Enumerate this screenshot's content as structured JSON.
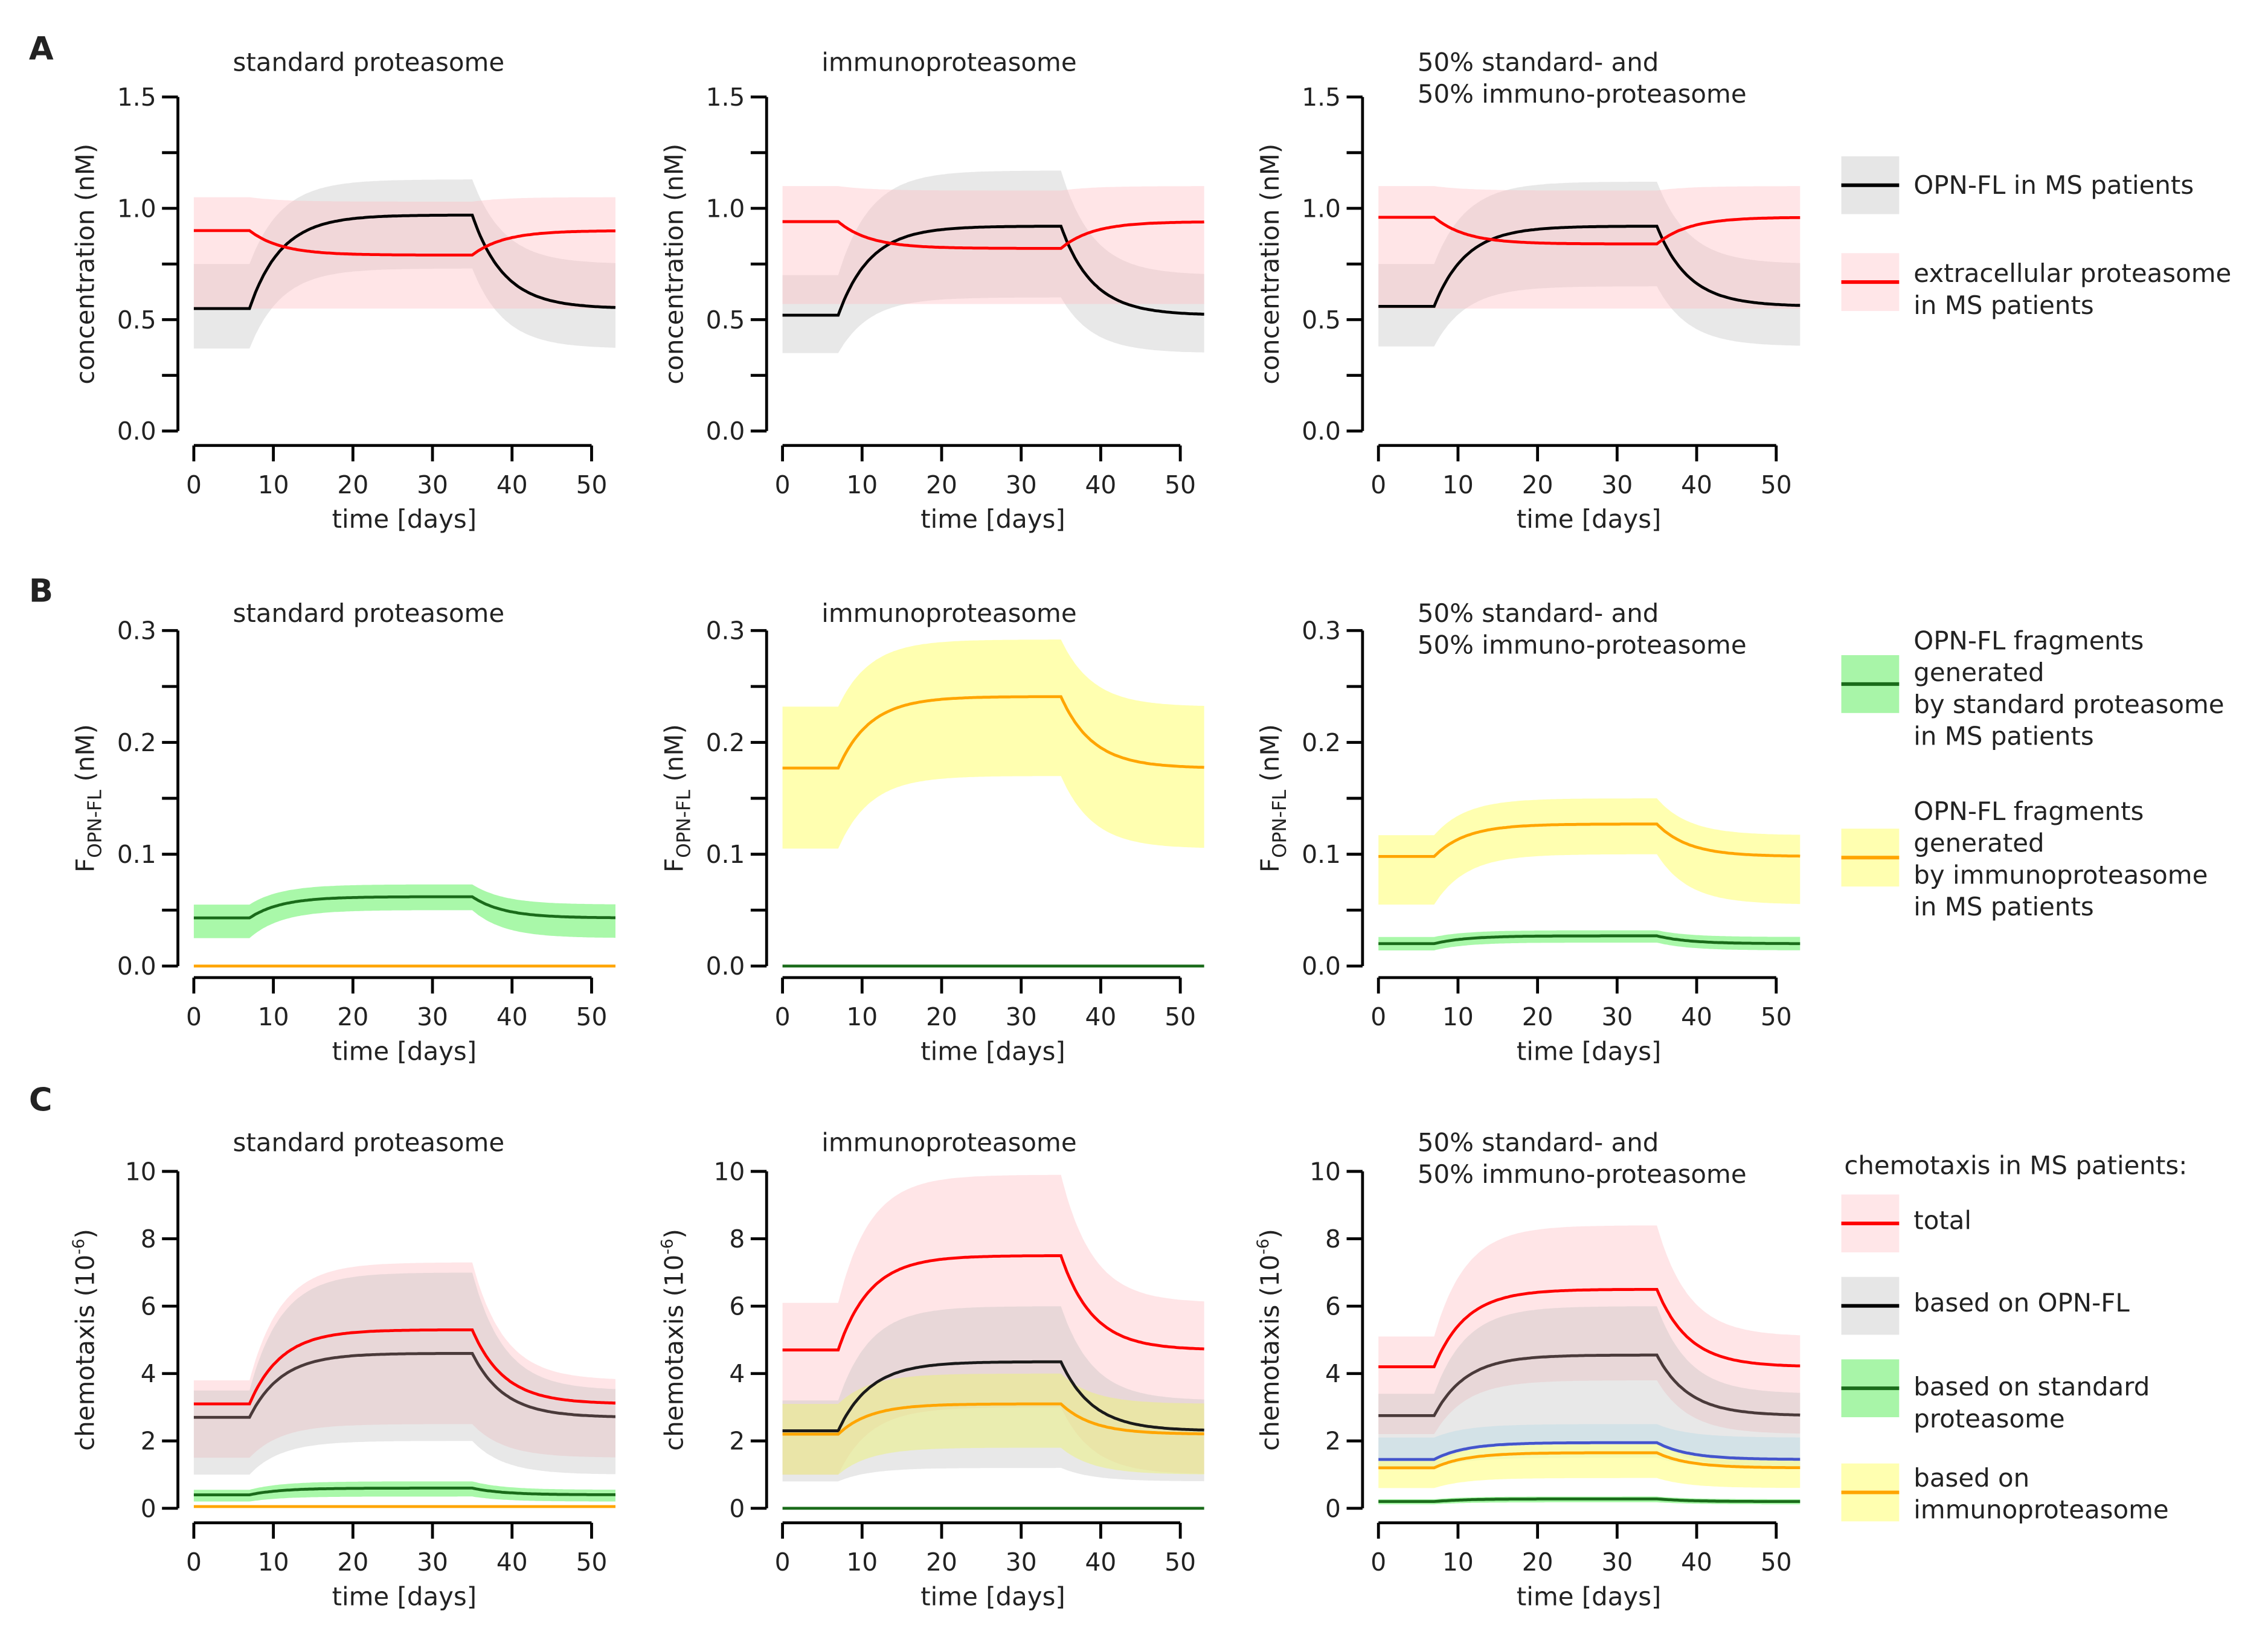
{
  "panel_labels": [
    "A",
    "B",
    "C"
  ],
  "treatment_window_days": [
    7,
    35
  ],
  "chart_data": [
    {
      "type": "line",
      "row": 0,
      "title": [
        "standard proteasome"
      ],
      "xlabel": "time [days]",
      "ylabel": {
        "text": "concentration (nM)"
      },
      "xlim": [
        0,
        53
      ],
      "ylim": [
        0,
        1.5
      ],
      "xticks": [
        0,
        10,
        20,
        30,
        40,
        50
      ],
      "yticks": [
        0,
        0.5,
        1.0,
        1.5
      ],
      "yminor": 0.25,
      "ydec": 1,
      "series": [
        {
          "color": "#000000",
          "baseline": 0.55,
          "plateau": 0.97,
          "band": {
            "color": "rgba(190,190,190,0.35)",
            "baseline": [
              0.37,
              0.75
            ],
            "plateau": [
              0.73,
              1.13
            ]
          }
        },
        {
          "color": "#ff0000",
          "baseline": 0.9,
          "plateau": 0.79,
          "band": {
            "color": "rgba(255,190,195,0.4)",
            "baseline": [
              0.55,
              1.05
            ],
            "plateau": [
              0.55,
              1.03
            ]
          }
        }
      ]
    },
    {
      "type": "line",
      "row": 0,
      "title": [
        "immunoproteasome"
      ],
      "xlabel": "time [days]",
      "ylabel": {
        "text": "concentration (nM)"
      },
      "xlim": [
        0,
        53
      ],
      "ylim": [
        0,
        1.5
      ],
      "xticks": [
        0,
        10,
        20,
        30,
        40,
        50
      ],
      "yticks": [
        0,
        0.5,
        1.0,
        1.5
      ],
      "yminor": 0.25,
      "ydec": 1,
      "series": [
        {
          "color": "#000000",
          "baseline": 0.52,
          "plateau": 0.92,
          "band": {
            "color": "rgba(190,190,190,0.35)",
            "baseline": [
              0.35,
              0.7
            ],
            "plateau": [
              0.6,
              1.17
            ]
          }
        },
        {
          "color": "#ff0000",
          "baseline": 0.94,
          "plateau": 0.82,
          "band": {
            "color": "rgba(255,190,195,0.4)",
            "baseline": [
              0.57,
              1.1
            ],
            "plateau": [
              0.57,
              1.08
            ]
          }
        }
      ]
    },
    {
      "type": "line",
      "row": 0,
      "title": [
        "50% standard- and",
        "50% immuno-proteasome"
      ],
      "xlabel": "time [days]",
      "ylabel": {
        "text": "concentration (nM)"
      },
      "xlim": [
        0,
        53
      ],
      "ylim": [
        0,
        1.5
      ],
      "xticks": [
        0,
        10,
        20,
        30,
        40,
        50
      ],
      "yticks": [
        0,
        0.5,
        1.0,
        1.5
      ],
      "yminor": 0.25,
      "ydec": 1,
      "series": [
        {
          "color": "#000000",
          "baseline": 0.56,
          "plateau": 0.92,
          "band": {
            "color": "rgba(190,190,190,0.35)",
            "baseline": [
              0.38,
              0.75
            ],
            "plateau": [
              0.65,
              1.12
            ]
          }
        },
        {
          "color": "#ff0000",
          "baseline": 0.96,
          "plateau": 0.84,
          "band": {
            "color": "rgba(255,190,195,0.4)",
            "baseline": [
              0.55,
              1.1
            ],
            "plateau": [
              0.55,
              1.08
            ]
          }
        }
      ]
    },
    {
      "type": "line",
      "row": 1,
      "title": [
        "standard proteasome"
      ],
      "xlabel": "time [days]",
      "ylabel": {
        "text": "F",
        "sub": "OPN-FL",
        "tail": " (nM)"
      },
      "xlim": [
        0,
        53
      ],
      "ylim": [
        0,
        0.3
      ],
      "xticks": [
        0,
        10,
        20,
        30,
        40,
        50
      ],
      "yticks": [
        0,
        0.1,
        0.2,
        0.3
      ],
      "yminor": 0.05,
      "ydec": 1,
      "series": [
        {
          "color": "#1a6b1a",
          "baseline": 0.043,
          "plateau": 0.062,
          "band": {
            "color": "rgba(140,245,140,0.75)",
            "baseline": [
              0.025,
              0.055
            ],
            "plateau": [
              0.05,
              0.073
            ]
          }
        },
        {
          "color": "#ffa500",
          "baseline": 0.0,
          "plateau": 0.0
        }
      ]
    },
    {
      "type": "line",
      "row": 1,
      "title": [
        "immunoproteasome"
      ],
      "xlabel": "time [days]",
      "ylabel": {
        "text": "F",
        "sub": "OPN-FL",
        "tail": " (nM)"
      },
      "xlim": [
        0,
        53
      ],
      "ylim": [
        0,
        0.3
      ],
      "xticks": [
        0,
        10,
        20,
        30,
        40,
        50
      ],
      "yticks": [
        0,
        0.1,
        0.2,
        0.3
      ],
      "yminor": 0.05,
      "ydec": 1,
      "series": [
        {
          "color": "#ffa500",
          "baseline": 0.177,
          "plateau": 0.241,
          "band": {
            "color": "rgba(255,255,150,0.75)",
            "baseline": [
              0.105,
              0.232
            ],
            "plateau": [
              0.17,
              0.292
            ]
          }
        },
        {
          "color": "#1a6b1a",
          "baseline": 0.0,
          "plateau": 0.0
        }
      ]
    },
    {
      "type": "line",
      "row": 1,
      "title": [
        "50% standard- and",
        "50% immuno-proteasome"
      ],
      "xlabel": "time [days]",
      "ylabel": {
        "text": "F",
        "sub": "OPN-FL",
        "tail": " (nM)"
      },
      "xlim": [
        0,
        53
      ],
      "ylim": [
        0,
        0.3
      ],
      "xticks": [
        0,
        10,
        20,
        30,
        40,
        50
      ],
      "yticks": [
        0,
        0.1,
        0.2,
        0.3
      ],
      "yminor": 0.05,
      "ydec": 1,
      "series": [
        {
          "color": "#ffa500",
          "baseline": 0.098,
          "plateau": 0.127,
          "band": {
            "color": "rgba(255,255,150,0.75)",
            "baseline": [
              0.055,
              0.117
            ],
            "plateau": [
              0.1,
              0.15
            ]
          }
        },
        {
          "color": "#1a6b1a",
          "baseline": 0.02,
          "plateau": 0.027,
          "band": {
            "color": "rgba(140,245,140,0.75)",
            "baseline": [
              0.014,
              0.026
            ],
            "plateau": [
              0.021,
              0.032
            ]
          }
        }
      ]
    },
    {
      "type": "line",
      "row": 2,
      "title": [
        "standard proteasome"
      ],
      "xlabel": "time [days]",
      "ylabel": {
        "text": "chemotaxis (10",
        "sup": "-6",
        "tail": ")"
      },
      "xlim": [
        0,
        53
      ],
      "ylim": [
        0,
        10
      ],
      "xticks": [
        0,
        10,
        20,
        30,
        40,
        50
      ],
      "yticks": [
        0,
        2,
        4,
        6,
        8,
        10
      ],
      "yminor": 2,
      "ydec": 0,
      "series": [
        {
          "color": "#ff0000",
          "baseline": 3.1,
          "plateau": 5.3,
          "band": {
            "color": "rgba(255,190,195,0.4)",
            "baseline": [
              1.5,
              3.8
            ],
            "plateau": [
              2.5,
              7.3
            ]
          }
        },
        {
          "color": "#4a3a3a",
          "baseline": 2.7,
          "plateau": 4.6,
          "band": {
            "color": "rgba(190,190,190,0.35)",
            "baseline": [
              1.0,
              3.5
            ],
            "plateau": [
              2.0,
              7.0
            ]
          }
        },
        {
          "color": "#1a6b1a",
          "baseline": 0.4,
          "plateau": 0.6,
          "band": {
            "color": "rgba(140,245,140,0.75)",
            "baseline": [
              0.2,
              0.55
            ],
            "plateau": [
              0.35,
              0.8
            ]
          }
        },
        {
          "color": "#ffa500",
          "baseline": 0.05,
          "plateau": 0.05
        }
      ]
    },
    {
      "type": "line",
      "row": 2,
      "title": [
        "immunoproteasome"
      ],
      "xlabel": "time [days]",
      "ylabel": {
        "text": "chemotaxis (10",
        "sup": "-6",
        "tail": ")"
      },
      "xlim": [
        0,
        53
      ],
      "ylim": [
        0,
        10
      ],
      "xticks": [
        0,
        10,
        20,
        30,
        40,
        50
      ],
      "yticks": [
        0,
        2,
        4,
        6,
        8,
        10
      ],
      "yminor": 2,
      "ydec": 0,
      "series": [
        {
          "color": "#ff0000",
          "baseline": 4.7,
          "plateau": 7.5,
          "band": {
            "color": "rgba(255,190,195,0.4)",
            "baseline": [
              1.0,
              6.1
            ],
            "plateau": [
              3.0,
              9.9
            ]
          }
        },
        {
          "color": "#1a1a1a",
          "baseline": 2.3,
          "plateau": 4.35,
          "band": {
            "color": "rgba(190,190,190,0.35)",
            "baseline": [
              0.8,
              3.2
            ],
            "plateau": [
              1.2,
              6.0
            ]
          }
        },
        {
          "color": "#ffa500",
          "baseline": 2.2,
          "plateau": 3.1,
          "band": {
            "color": "rgba(235,240,130,0.55)",
            "baseline": [
              1.0,
              3.1
            ],
            "plateau": [
              1.8,
              4.0
            ]
          }
        },
        {
          "color": "#1a6b1a",
          "baseline": 0.0,
          "plateau": 0.0
        }
      ]
    },
    {
      "type": "line",
      "row": 2,
      "title": [
        "50% standard- and",
        "50% immuno-proteasome"
      ],
      "xlabel": "time [days]",
      "ylabel": {
        "text": "chemotaxis (10",
        "sup": "-6",
        "tail": ")"
      },
      "xlim": [
        0,
        53
      ],
      "ylim": [
        0,
        10
      ],
      "xticks": [
        0,
        10,
        20,
        30,
        40,
        50
      ],
      "yticks": [
        0,
        2,
        4,
        6,
        8,
        10
      ],
      "yminor": 2,
      "ydec": 0,
      "series": [
        {
          "color": "#ff0000",
          "baseline": 4.2,
          "plateau": 6.5,
          "band": {
            "color": "rgba(255,190,195,0.4)",
            "baseline": [
              2.2,
              5.1
            ],
            "plateau": [
              3.8,
              8.4
            ]
          }
        },
        {
          "color": "#4a3a3a",
          "baseline": 2.75,
          "plateau": 4.55,
          "band": {
            "color": "rgba(190,190,190,0.35)",
            "baseline": [
              1.2,
              3.4
            ],
            "plateau": [
              2.0,
              6.0
            ]
          }
        },
        {
          "color": "#4455cc",
          "baseline": 1.45,
          "plateau": 1.95,
          "band": {
            "color": "rgba(173,216,230,0.35)",
            "baseline": [
              1.2,
              2.1
            ],
            "plateau": [
              1.5,
              2.5
            ]
          }
        },
        {
          "color": "#ffa500",
          "baseline": 1.2,
          "plateau": 1.65,
          "band": {
            "color": "rgba(255,255,150,0.7)",
            "baseline": [
              0.6,
              1.4
            ],
            "plateau": [
              0.9,
              1.9
            ]
          }
        },
        {
          "color": "#1a6b1a",
          "baseline": 0.2,
          "plateau": 0.28,
          "band": {
            "color": "rgba(140,245,140,0.75)",
            "baseline": [
              0.12,
              0.27
            ],
            "plateau": [
              0.18,
              0.35
            ]
          }
        }
      ]
    }
  ],
  "legends": [
    {
      "header": "",
      "entries": [
        {
          "lines": [
            "OPN-FL in MS patients"
          ],
          "line_color": "#000000",
          "fill": "#e6e6e6"
        },
        {
          "lines": [
            "extracellular proteasome",
            "in MS patients"
          ],
          "line_color": "#ff0000",
          "fill": "#ffe6e8"
        }
      ]
    },
    {
      "header": "",
      "entries": [
        {
          "lines": [
            "OPN-FL fragments",
            "generated",
            "by standard proteasome",
            "in MS patients"
          ],
          "line_color": "#1a6b1a",
          "fill": "#a8f5a8"
        },
        {
          "lines": [
            "OPN-FL fragments",
            "generated",
            "by immunoproteasome",
            "in MS patients"
          ],
          "line_color": "#ffa500",
          "fill": "#ffffb0"
        }
      ]
    },
    {
      "header": "chemotaxis in MS patients:",
      "entries": [
        {
          "lines": [
            "total"
          ],
          "line_color": "#ff0000",
          "fill": "#ffe6e8"
        },
        {
          "lines": [
            "based on OPN-FL"
          ],
          "line_color": "#000000",
          "fill": "#e6e6e6"
        },
        {
          "lines": [
            "based on standard",
            "proteasome"
          ],
          "line_color": "#1a6b1a",
          "fill": "#a8f5a8"
        },
        {
          "lines": [
            "based on",
            "immunoproteasome"
          ],
          "line_color": "#ffa500",
          "fill": "#ffffb0"
        }
      ]
    }
  ]
}
